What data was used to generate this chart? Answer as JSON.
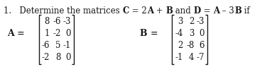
{
  "title_plain": "1.   Determine the matrices ",
  "title_bold1": "C",
  "title_mid1": " = 2",
  "title_bold2": "A",
  "title_mid2": " + ",
  "title_bold3": "B",
  "title_end1": " and ",
  "title_bold4": "D",
  "title_end2": " = ",
  "title_bold5": "A",
  "title_end3": " – 3",
  "title_bold6": "B",
  "title_end4": " if",
  "A_label": "A =",
  "B_label": "B =",
  "A_matrix": [
    [
      "8",
      "-6",
      "-3"
    ],
    [
      "1",
      "-2",
      "0"
    ],
    [
      "-6",
      "5",
      "-1"
    ],
    [
      "-2",
      "8",
      "0"
    ]
  ],
  "B_matrix": [
    [
      "3",
      "2",
      "-3"
    ],
    [
      "-4",
      "3",
      "0"
    ],
    [
      "2",
      "-8",
      "6"
    ],
    [
      "-1",
      "4",
      "-7"
    ]
  ],
  "bg_color": "#ffffff",
  "text_color": "#1a1a1a",
  "fontsize": 8.5,
  "title_fontsize": 8.5
}
